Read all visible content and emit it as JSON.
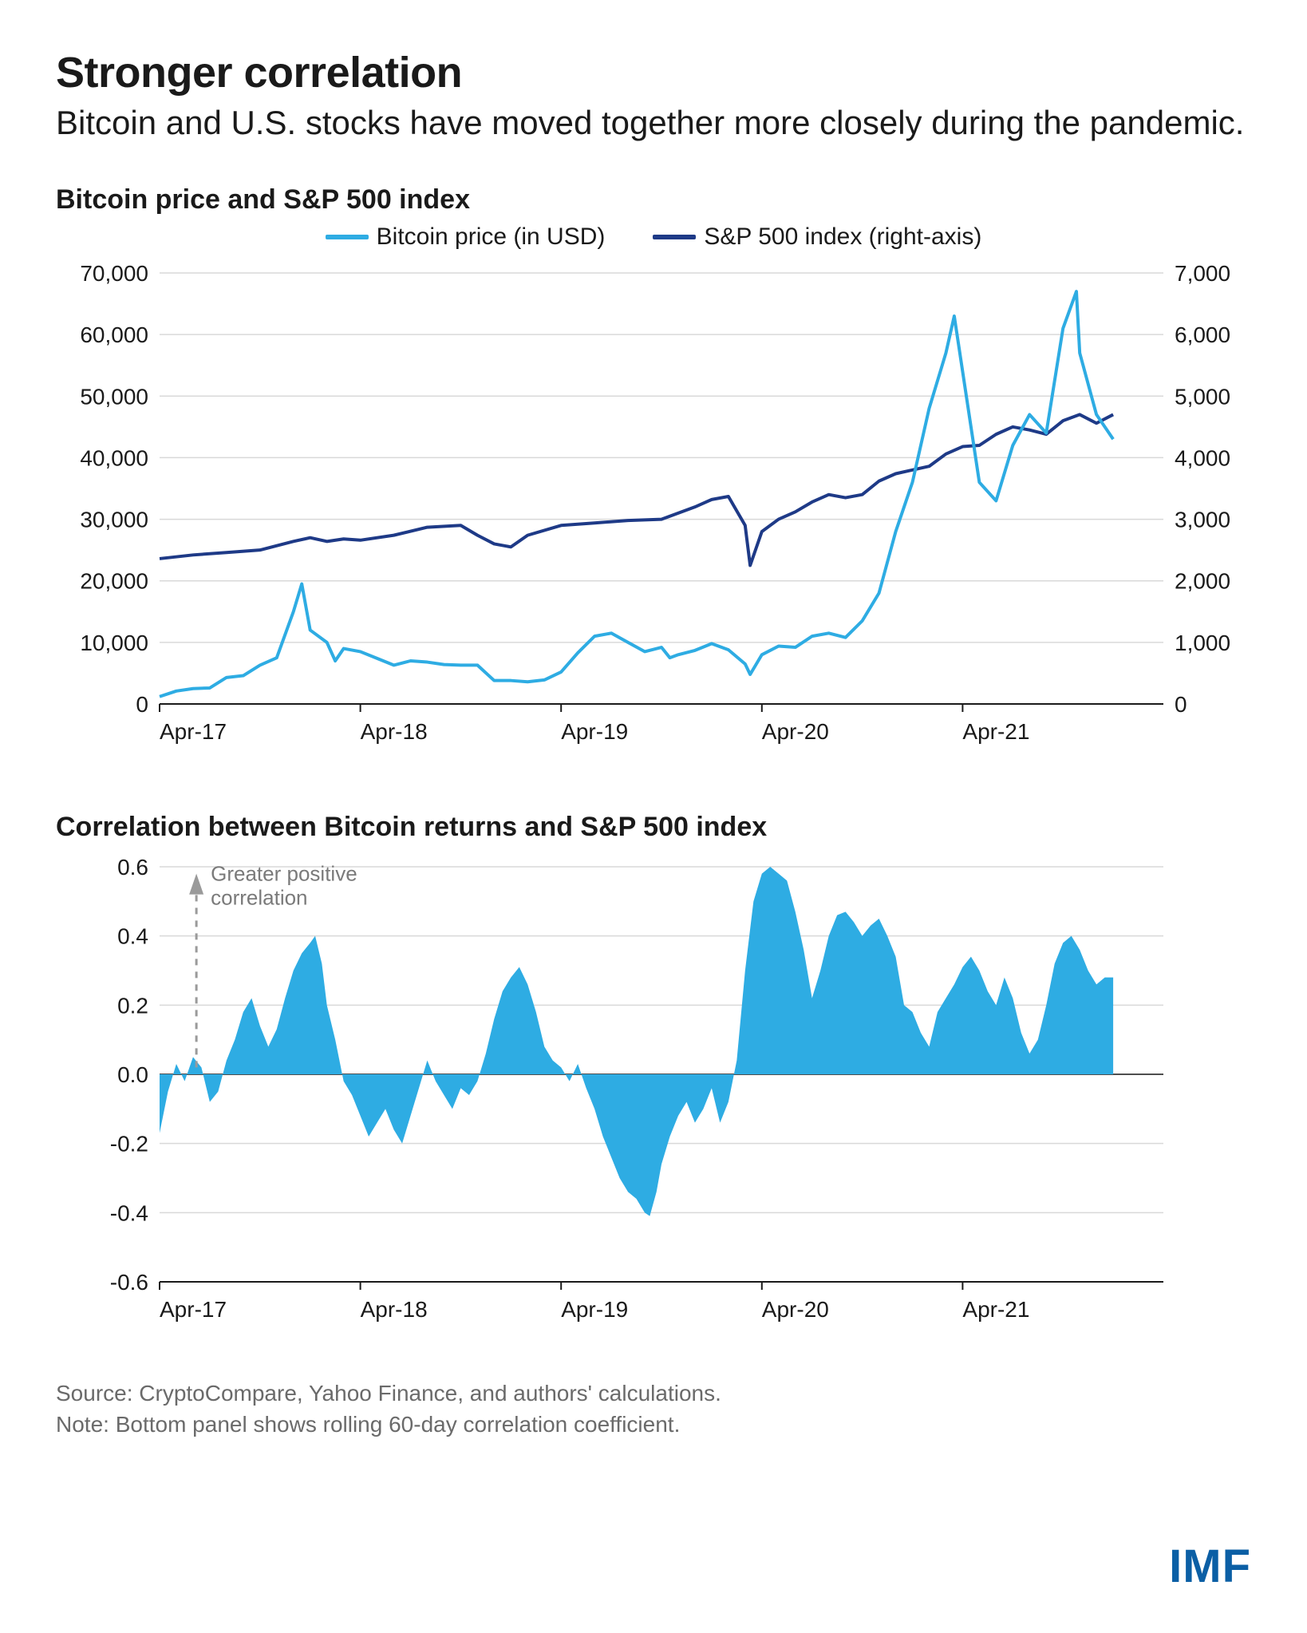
{
  "header": {
    "title": "Stronger correlation",
    "subtitle": "Bitcoin and U.S. stocks have moved together more closely during the pandemic."
  },
  "panel1": {
    "title": "Bitcoin price and S&P 500 index",
    "legend": {
      "series1": "Bitcoin price (in USD)",
      "series2": "S&P 500 index (right-axis)"
    },
    "colors": {
      "bitcoin": "#2eace3",
      "sp500": "#1e3a87",
      "grid": "#d9d9d9",
      "axis": "#1a1a1a",
      "background": "#ffffff"
    },
    "line_width": 4,
    "x": {
      "min": 0,
      "max": 60,
      "ticks": [
        0,
        12,
        24,
        36,
        48
      ],
      "labels": [
        "Apr-17",
        "Apr-18",
        "Apr-19",
        "Apr-20",
        "Apr-21"
      ]
    },
    "y_left": {
      "min": 0,
      "max": 70000,
      "ticks": [
        0,
        10000,
        20000,
        30000,
        40000,
        50000,
        60000,
        70000
      ],
      "labels": [
        "0",
        "10,000",
        "20,000",
        "30,000",
        "40,000",
        "50,000",
        "60,000",
        "70,000"
      ]
    },
    "y_right": {
      "min": 0,
      "max": 7000,
      "ticks": [
        0,
        1000,
        2000,
        3000,
        4000,
        5000,
        6000,
        7000
      ],
      "labels": [
        "0",
        "1,000",
        "2,000",
        "3,000",
        "4,000",
        "5,000",
        "6,000",
        "7,000"
      ]
    },
    "bitcoin_series": [
      [
        0,
        1200
      ],
      [
        1,
        2100
      ],
      [
        2,
        2500
      ],
      [
        3,
        2600
      ],
      [
        4,
        4300
      ],
      [
        5,
        4600
      ],
      [
        6,
        6300
      ],
      [
        7,
        7500
      ],
      [
        8,
        15000
      ],
      [
        8.5,
        19500
      ],
      [
        9,
        12000
      ],
      [
        10,
        10000
      ],
      [
        10.5,
        7000
      ],
      [
        11,
        9000
      ],
      [
        12,
        8500
      ],
      [
        13,
        7400
      ],
      [
        14,
        6300
      ],
      [
        15,
        7000
      ],
      [
        16,
        6800
      ],
      [
        17,
        6400
      ],
      [
        18,
        6300
      ],
      [
        19,
        6300
      ],
      [
        20,
        3800
      ],
      [
        21,
        3800
      ],
      [
        22,
        3600
      ],
      [
        23,
        3900
      ],
      [
        24,
        5200
      ],
      [
        25,
        8300
      ],
      [
        26,
        11000
      ],
      [
        27,
        11500
      ],
      [
        28,
        10000
      ],
      [
        29,
        8500
      ],
      [
        30,
        9200
      ],
      [
        30.5,
        7500
      ],
      [
        31,
        8000
      ],
      [
        32,
        8700
      ],
      [
        33,
        9800
      ],
      [
        34,
        8800
      ],
      [
        35,
        6500
      ],
      [
        35.3,
        4800
      ],
      [
        36,
        8000
      ],
      [
        37,
        9400
      ],
      [
        38,
        9200
      ],
      [
        39,
        11000
      ],
      [
        40,
        11500
      ],
      [
        41,
        10800
      ],
      [
        42,
        13500
      ],
      [
        43,
        18000
      ],
      [
        44,
        28000
      ],
      [
        45,
        36000
      ],
      [
        46,
        48000
      ],
      [
        47,
        57000
      ],
      [
        47.5,
        63000
      ],
      [
        48,
        54000
      ],
      [
        49,
        36000
      ],
      [
        50,
        33000
      ],
      [
        51,
        42000
      ],
      [
        52,
        47000
      ],
      [
        53,
        44000
      ],
      [
        54,
        61000
      ],
      [
        54.8,
        67000
      ],
      [
        55,
        57000
      ],
      [
        56,
        47000
      ],
      [
        57,
        43000
      ]
    ],
    "sp500_series": [
      [
        0,
        2360
      ],
      [
        2,
        2420
      ],
      [
        4,
        2460
      ],
      [
        6,
        2500
      ],
      [
        8,
        2640
      ],
      [
        9,
        2700
      ],
      [
        10,
        2640
      ],
      [
        11,
        2680
      ],
      [
        12,
        2660
      ],
      [
        14,
        2740
      ],
      [
        16,
        2870
      ],
      [
        18,
        2900
      ],
      [
        19,
        2740
      ],
      [
        20,
        2600
      ],
      [
        21,
        2550
      ],
      [
        22,
        2740
      ],
      [
        24,
        2900
      ],
      [
        26,
        2940
      ],
      [
        28,
        2980
      ],
      [
        30,
        3000
      ],
      [
        31,
        3100
      ],
      [
        32,
        3200
      ],
      [
        33,
        3320
      ],
      [
        34,
        3370
      ],
      [
        35,
        2900
      ],
      [
        35.3,
        2250
      ],
      [
        36,
        2800
      ],
      [
        37,
        3000
      ],
      [
        38,
        3120
      ],
      [
        39,
        3280
      ],
      [
        40,
        3400
      ],
      [
        41,
        3350
      ],
      [
        42,
        3400
      ],
      [
        43,
        3620
      ],
      [
        44,
        3740
      ],
      [
        45,
        3800
      ],
      [
        46,
        3860
      ],
      [
        47,
        4060
      ],
      [
        48,
        4180
      ],
      [
        49,
        4200
      ],
      [
        50,
        4380
      ],
      [
        51,
        4500
      ],
      [
        52,
        4450
      ],
      [
        53,
        4380
      ],
      [
        54,
        4600
      ],
      [
        55,
        4700
      ],
      [
        56,
        4560
      ],
      [
        57,
        4700
      ]
    ]
  },
  "panel2": {
    "title": "Correlation between Bitcoin returns and S&P 500 index",
    "colors": {
      "fill": "#2eace3",
      "grid": "#d9d9d9",
      "axis": "#1a1a1a",
      "annotation": "#7a7a7a"
    },
    "annotation": {
      "text_line1": "Greater positive",
      "text_line2": "correlation"
    },
    "x": {
      "min": 0,
      "max": 60,
      "ticks": [
        0,
        12,
        24,
        36,
        48
      ],
      "labels": [
        "Apr-17",
        "Apr-18",
        "Apr-19",
        "Apr-20",
        "Apr-21"
      ]
    },
    "y": {
      "min": -0.6,
      "max": 0.6,
      "ticks": [
        -0.6,
        -0.4,
        -0.2,
        0.0,
        0.2,
        0.4,
        0.6
      ],
      "labels": [
        "-0.6",
        "-0.4",
        "-0.2",
        "0.0",
        "0.2",
        "0.4",
        "0.6"
      ]
    },
    "correlation_series": [
      [
        0,
        -0.17
      ],
      [
        0.5,
        -0.05
      ],
      [
        1,
        0.03
      ],
      [
        1.5,
        -0.02
      ],
      [
        2,
        0.05
      ],
      [
        2.5,
        0.02
      ],
      [
        3,
        -0.08
      ],
      [
        3.5,
        -0.05
      ],
      [
        4,
        0.04
      ],
      [
        4.5,
        0.1
      ],
      [
        5,
        0.18
      ],
      [
        5.5,
        0.22
      ],
      [
        6,
        0.14
      ],
      [
        6.5,
        0.08
      ],
      [
        7,
        0.13
      ],
      [
        7.5,
        0.22
      ],
      [
        8,
        0.3
      ],
      [
        8.5,
        0.35
      ],
      [
        9,
        0.38
      ],
      [
        9.3,
        0.4
      ],
      [
        9.7,
        0.32
      ],
      [
        10,
        0.2
      ],
      [
        10.5,
        0.1
      ],
      [
        11,
        -0.02
      ],
      [
        11.5,
        -0.06
      ],
      [
        12,
        -0.12
      ],
      [
        12.5,
        -0.18
      ],
      [
        13,
        -0.14
      ],
      [
        13.5,
        -0.1
      ],
      [
        14,
        -0.16
      ],
      [
        14.5,
        -0.2
      ],
      [
        15,
        -0.12
      ],
      [
        15.5,
        -0.04
      ],
      [
        16,
        0.04
      ],
      [
        16.5,
        -0.02
      ],
      [
        17,
        -0.06
      ],
      [
        17.5,
        -0.1
      ],
      [
        18,
        -0.04
      ],
      [
        18.5,
        -0.06
      ],
      [
        19,
        -0.02
      ],
      [
        19.5,
        0.06
      ],
      [
        20,
        0.16
      ],
      [
        20.5,
        0.24
      ],
      [
        21,
        0.28
      ],
      [
        21.5,
        0.31
      ],
      [
        22,
        0.26
      ],
      [
        22.5,
        0.18
      ],
      [
        23,
        0.08
      ],
      [
        23.5,
        0.04
      ],
      [
        24,
        0.02
      ],
      [
        24.5,
        -0.02
      ],
      [
        25,
        0.03
      ],
      [
        25.5,
        -0.04
      ],
      [
        26,
        -0.1
      ],
      [
        26.5,
        -0.18
      ],
      [
        27,
        -0.24
      ],
      [
        27.5,
        -0.3
      ],
      [
        28,
        -0.34
      ],
      [
        28.5,
        -0.36
      ],
      [
        29,
        -0.4
      ],
      [
        29.3,
        -0.41
      ],
      [
        29.7,
        -0.34
      ],
      [
        30,
        -0.26
      ],
      [
        30.5,
        -0.18
      ],
      [
        31,
        -0.12
      ],
      [
        31.5,
        -0.08
      ],
      [
        32,
        -0.14
      ],
      [
        32.5,
        -0.1
      ],
      [
        33,
        -0.04
      ],
      [
        33.5,
        -0.14
      ],
      [
        34,
        -0.08
      ],
      [
        34.5,
        0.04
      ],
      [
        35,
        0.3
      ],
      [
        35.5,
        0.5
      ],
      [
        36,
        0.58
      ],
      [
        36.5,
        0.6
      ],
      [
        37,
        0.58
      ],
      [
        37.5,
        0.56
      ],
      [
        38,
        0.47
      ],
      [
        38.5,
        0.36
      ],
      [
        39,
        0.22
      ],
      [
        39.5,
        0.3
      ],
      [
        40,
        0.4
      ],
      [
        40.5,
        0.46
      ],
      [
        41,
        0.47
      ],
      [
        41.5,
        0.44
      ],
      [
        42,
        0.4
      ],
      [
        42.5,
        0.43
      ],
      [
        43,
        0.45
      ],
      [
        43.5,
        0.4
      ],
      [
        44,
        0.34
      ],
      [
        44.5,
        0.2
      ],
      [
        45,
        0.18
      ],
      [
        45.5,
        0.12
      ],
      [
        46,
        0.08
      ],
      [
        46.5,
        0.18
      ],
      [
        47,
        0.22
      ],
      [
        47.5,
        0.26
      ],
      [
        48,
        0.31
      ],
      [
        48.5,
        0.34
      ],
      [
        49,
        0.3
      ],
      [
        49.5,
        0.24
      ],
      [
        50,
        0.2
      ],
      [
        50.5,
        0.28
      ],
      [
        51,
        0.22
      ],
      [
        51.5,
        0.12
      ],
      [
        52,
        0.06
      ],
      [
        52.5,
        0.1
      ],
      [
        53,
        0.2
      ],
      [
        53.5,
        0.32
      ],
      [
        54,
        0.38
      ],
      [
        54.5,
        0.4
      ],
      [
        55,
        0.36
      ],
      [
        55.5,
        0.3
      ],
      [
        56,
        0.26
      ],
      [
        56.5,
        0.28
      ],
      [
        57,
        0.28
      ]
    ]
  },
  "footer": {
    "source": "Source: CryptoCompare, Yahoo Finance, and authors' calculations.",
    "note": "Note: Bottom panel shows rolling 60-day correlation coefficient."
  },
  "logo": {
    "text": "IMF",
    "color": "#0b5fa5"
  }
}
